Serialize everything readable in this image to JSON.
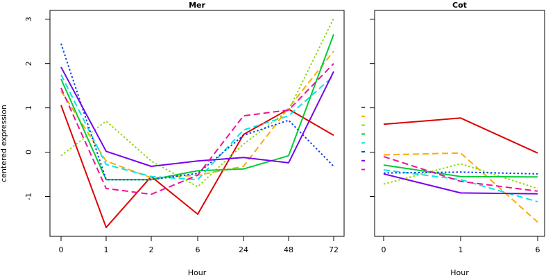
{
  "chart_data": [
    {
      "type": "line",
      "title": "Mer",
      "xlabel": "Hour",
      "ylabel": "centered expression",
      "categories": [
        "0",
        "1",
        "2",
        "6",
        "24",
        "48",
        "72"
      ],
      "ylim": [
        -1.9,
        3.2
      ],
      "yticks": [
        -1,
        0,
        1,
        2,
        3
      ],
      "grid": false,
      "series": [
        {
          "color": "#dd0000",
          "dash": "solid",
          "values": [
            1.06,
            -1.7,
            -0.55,
            -1.4,
            0.4,
            0.97,
            0.38
          ]
        },
        {
          "color": "#ffaa00",
          "dash": "dashed",
          "values": [
            1.38,
            -0.2,
            -0.58,
            -0.52,
            -0.32,
            1.0,
            2.28
          ]
        },
        {
          "color": "#88dd00",
          "dash": "dotted",
          "values": [
            -0.08,
            0.7,
            -0.2,
            -0.78,
            0.18,
            0.95,
            3.02
          ]
        },
        {
          "color": "#00cc33",
          "dash": "solid",
          "values": [
            1.65,
            -0.62,
            -0.62,
            -0.42,
            -0.38,
            -0.08,
            2.66
          ]
        },
        {
          "color": "#00e5e5",
          "dash": "dashed",
          "values": [
            1.75,
            -0.28,
            -0.55,
            -0.62,
            0.5,
            0.82,
            1.72
          ]
        },
        {
          "color": "#0044ee",
          "dash": "dotted",
          "values": [
            2.45,
            -0.62,
            -0.62,
            -0.48,
            0.38,
            0.72,
            -0.32
          ]
        },
        {
          "color": "#7700ee",
          "dash": "solid",
          "values": [
            1.92,
            0.02,
            -0.32,
            -0.2,
            -0.12,
            -0.24,
            1.82
          ]
        },
        {
          "color": "#ee1199",
          "dash": "dashed",
          "values": [
            1.45,
            -0.82,
            -0.95,
            -0.52,
            0.82,
            0.95,
            2.0
          ]
        }
      ]
    },
    {
      "type": "line",
      "title": "Cot",
      "xlabel": "Hour",
      "categories": [
        "0",
        "1",
        "6"
      ],
      "ylim": [
        -1.9,
        3.2
      ],
      "yticks": [
        -1,
        0,
        1,
        2,
        3
      ],
      "grid": false,
      "series": [
        {
          "color": "#dd0000",
          "dash": "solid",
          "values": [
            0.63,
            0.77,
            -0.02
          ]
        },
        {
          "color": "#ffaa00",
          "dash": "dashed",
          "values": [
            -0.06,
            -0.02,
            -1.58
          ]
        },
        {
          "color": "#88dd00",
          "dash": "dotted",
          "values": [
            -0.72,
            -0.26,
            -0.82
          ]
        },
        {
          "color": "#00cc33",
          "dash": "solid",
          "values": [
            -0.29,
            -0.55,
            -0.56
          ]
        },
        {
          "color": "#00e5e5",
          "dash": "dashed",
          "values": [
            -0.4,
            -0.62,
            -1.12
          ]
        },
        {
          "color": "#0044ee",
          "dash": "dotted",
          "values": [
            -0.47,
            -0.45,
            -0.49
          ]
        },
        {
          "color": "#7700ee",
          "dash": "solid",
          "values": [
            -0.49,
            -0.92,
            -0.94
          ]
        },
        {
          "color": "#ee1199",
          "dash": "dashed",
          "values": [
            -0.1,
            -0.66,
            -0.88
          ]
        }
      ]
    }
  ]
}
